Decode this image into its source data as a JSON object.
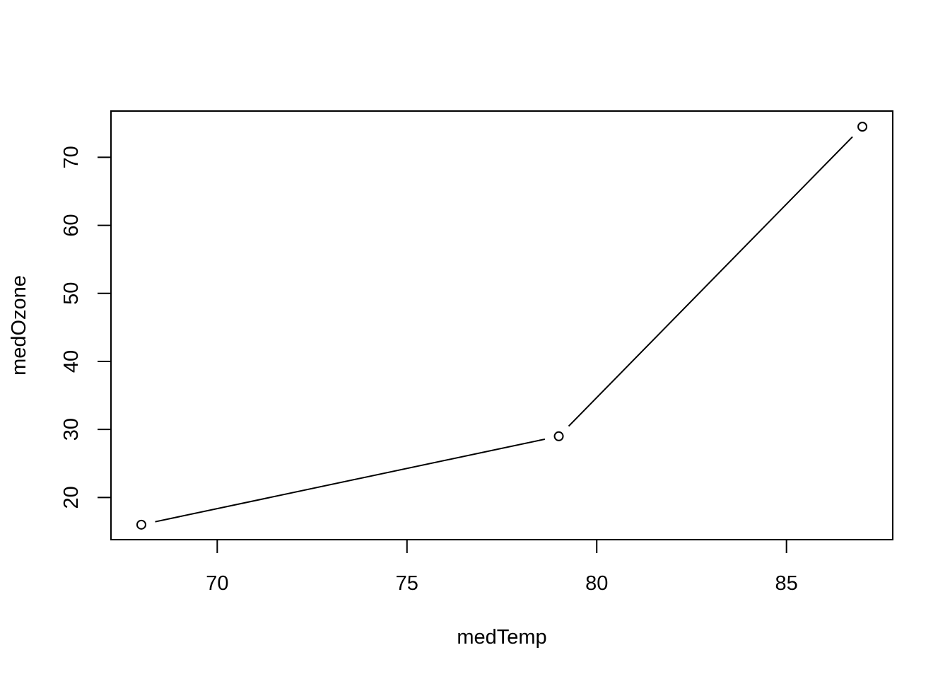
{
  "chart_data": {
    "type": "line",
    "markers": "open-circle",
    "xlabel": "medTemp",
    "ylabel": "medOzone",
    "x": [
      68,
      79,
      87
    ],
    "series": [
      {
        "values": [
          16,
          29,
          74.5
        ]
      }
    ],
    "xlim": [
      67.2,
      87.8
    ],
    "ylim": [
      13.8,
      76.8
    ],
    "x_ticks": [
      70,
      75,
      80,
      85
    ],
    "y_ticks": [
      20,
      30,
      40,
      50,
      60,
      70
    ],
    "grid": false,
    "line_color": "#000000"
  }
}
